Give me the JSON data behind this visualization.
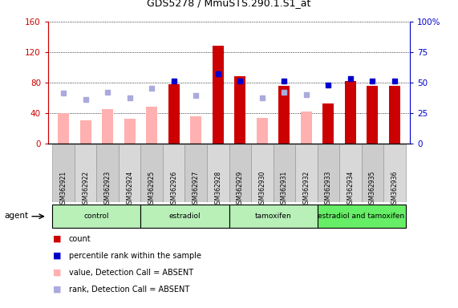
{
  "title": "GDS5278 / MmuSTS.290.1.S1_at",
  "samples": [
    "GSM362921",
    "GSM362922",
    "GSM362923",
    "GSM362924",
    "GSM362925",
    "GSM362926",
    "GSM362927",
    "GSM362928",
    "GSM362929",
    "GSM362930",
    "GSM362931",
    "GSM362932",
    "GSM362933",
    "GSM362934",
    "GSM362935",
    "GSM362936"
  ],
  "groups": [
    {
      "label": "control",
      "start": 0,
      "end": 4,
      "color": "#b8f0b8"
    },
    {
      "label": "estradiol",
      "start": 4,
      "end": 8,
      "color": "#b8f0b8"
    },
    {
      "label": "tamoxifen",
      "start": 8,
      "end": 12,
      "color": "#b8f0b8"
    },
    {
      "label": "estradiol and tamoxifen",
      "start": 12,
      "end": 16,
      "color": "#66ee66"
    }
  ],
  "red_bars": [
    null,
    null,
    null,
    null,
    null,
    78,
    null,
    128,
    88,
    null,
    76,
    null,
    52,
    82,
    76,
    76
  ],
  "pink_bars": [
    40,
    30,
    45,
    32,
    48,
    null,
    35,
    null,
    null,
    33,
    null,
    42,
    null,
    null,
    null,
    null
  ],
  "blue_squares": [
    null,
    null,
    null,
    null,
    null,
    51,
    null,
    57,
    51,
    null,
    51,
    null,
    48,
    53,
    51,
    51
  ],
  "lavender_squares": [
    41,
    36,
    42,
    37,
    45,
    null,
    39,
    null,
    null,
    37,
    42,
    40,
    null,
    null,
    null,
    null
  ],
  "ylim_left": [
    0,
    160
  ],
  "ylim_right": [
    0,
    100
  ],
  "yticks_left": [
    0,
    40,
    80,
    120,
    160
  ],
  "yticks_right": [
    0,
    25,
    50,
    75,
    100
  ],
  "red_color": "#cc0000",
  "pink_color": "#ffb0b0",
  "blue_color": "#0000cc",
  "lavender_color": "#aaaadd",
  "bar_width": 0.5,
  "legend_items": [
    {
      "label": "count",
      "color": "#cc0000"
    },
    {
      "label": "percentile rank within the sample",
      "color": "#0000cc"
    },
    {
      "label": "value, Detection Call = ABSENT",
      "color": "#ffb0b0"
    },
    {
      "label": "rank, Detection Call = ABSENT",
      "color": "#aaaadd"
    }
  ]
}
